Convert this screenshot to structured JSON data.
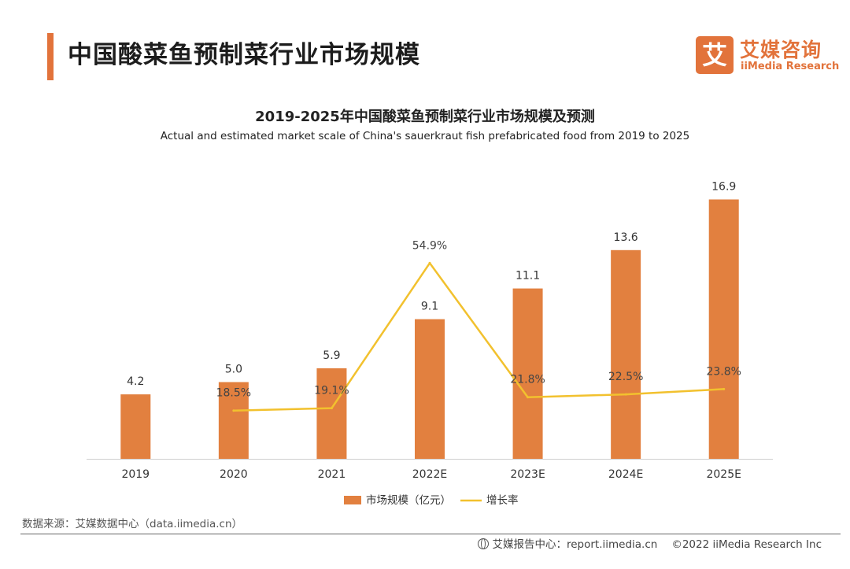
{
  "page": {
    "title": "中国酸菜鱼预制菜行业市场规模",
    "logo_mark": "艾",
    "logo_cn": "艾媒咨询",
    "logo_en": "iiMedia Research",
    "source": "数据来源：艾媒数据中心（data.iimedia.cn）",
    "footer_report": "艾媒报告中心：report.iimedia.cn",
    "footer_copyright": "©2022 iiMedia Research Inc"
  },
  "chart_data": {
    "type": "bar",
    "title": "2019-2025年中国酸菜鱼预制菜行业市场规模及预测",
    "subtitle": "Actual and estimated market scale of China's sauerkraut fish prefabricated food from 2019 to 2025",
    "categories": [
      "2019",
      "2020",
      "2021",
      "2022E",
      "2023E",
      "2024E",
      "2025E"
    ],
    "series": [
      {
        "name": "市场规模（亿元）",
        "type": "bar",
        "axis": "left",
        "color": "#e2803f",
        "values": [
          4.2,
          5.0,
          5.9,
          9.1,
          11.1,
          13.6,
          16.9
        ],
        "labels": [
          "4.2",
          "5.0",
          "5.9",
          "9.1",
          "11.1",
          "13.6",
          "16.9"
        ]
      },
      {
        "name": "增长率",
        "type": "line",
        "axis": "right",
        "color": "#f2c12e",
        "values": [
          null,
          18.5,
          19.1,
          54.9,
          21.8,
          22.5,
          23.8
        ],
        "labels": [
          "",
          "18.5%",
          "19.1%",
          "54.9%",
          "21.8%",
          "22.5%",
          "23.8%"
        ]
      }
    ],
    "ylim_left": [
      0,
      18
    ],
    "ylim_right": [
      0,
      60
    ],
    "grid": false,
    "legend_position": "bottom"
  }
}
